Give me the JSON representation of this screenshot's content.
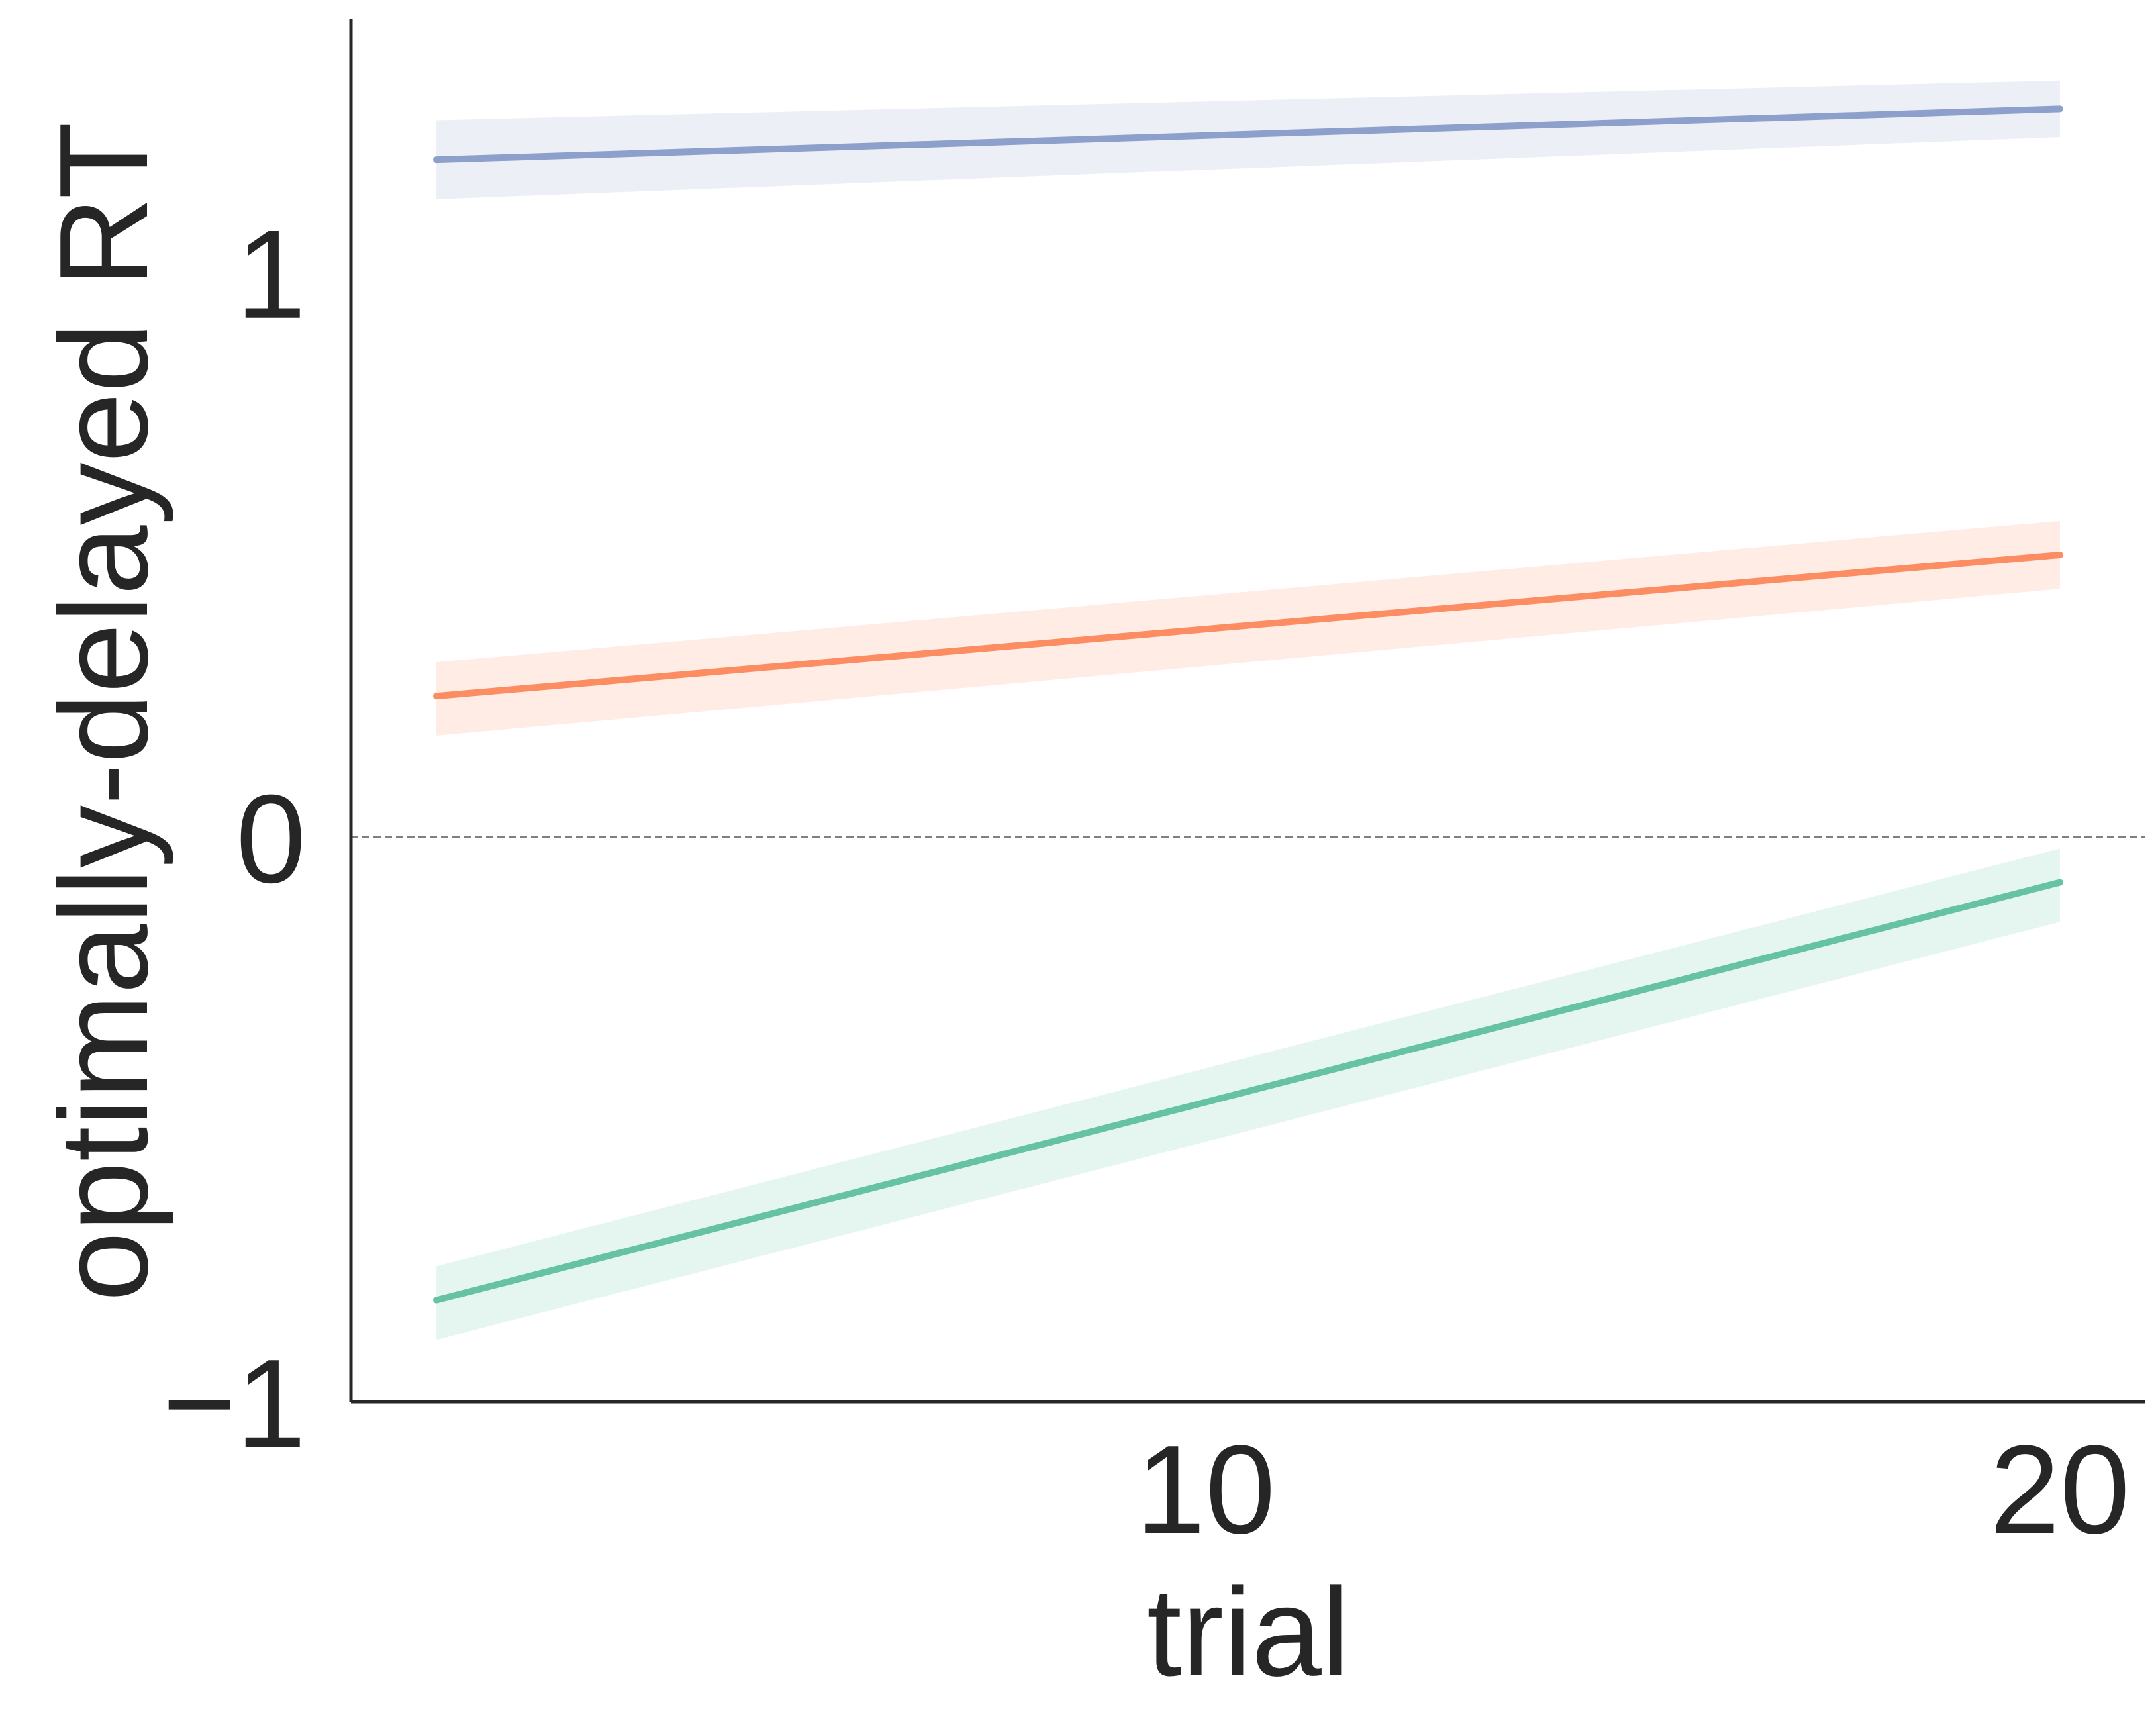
{
  "chart_data": {
    "type": "line",
    "title": "",
    "xlabel": "trial",
    "ylabel": "optimally-delayed RT",
    "xlim": [
      0,
      21
    ],
    "ylim": [
      -1,
      1.45
    ],
    "xticks": [
      {
        "value": 10,
        "label": "10"
      },
      {
        "value": 20,
        "label": "20"
      }
    ],
    "yticks": [
      {
        "value": -1,
        "label": "−1"
      },
      {
        "value": 0,
        "label": "0"
      },
      {
        "value": 1,
        "label": "1"
      }
    ],
    "reference_line": {
      "y": 0,
      "style": "dashed",
      "color": "#808080"
    },
    "grid": false,
    "legend": "none",
    "series": [
      {
        "color": "#8da0cb",
        "x": [
          1,
          20
        ],
        "y": [
          1.2,
          1.29
        ],
        "ci_lower": [
          1.13,
          1.24
        ],
        "ci_upper": [
          1.27,
          1.34
        ]
      },
      {
        "color": "#fc8d62",
        "x": [
          1,
          20
        ],
        "y": [
          0.25,
          0.5
        ],
        "ci_lower": [
          0.18,
          0.44
        ],
        "ci_upper": [
          0.31,
          0.56
        ]
      },
      {
        "color": "#66c2a5",
        "x": [
          1,
          20
        ],
        "y": [
          -0.82,
          -0.08
        ],
        "ci_lower": [
          -0.89,
          -0.15
        ],
        "ci_upper": [
          -0.76,
          -0.02
        ]
      }
    ]
  }
}
